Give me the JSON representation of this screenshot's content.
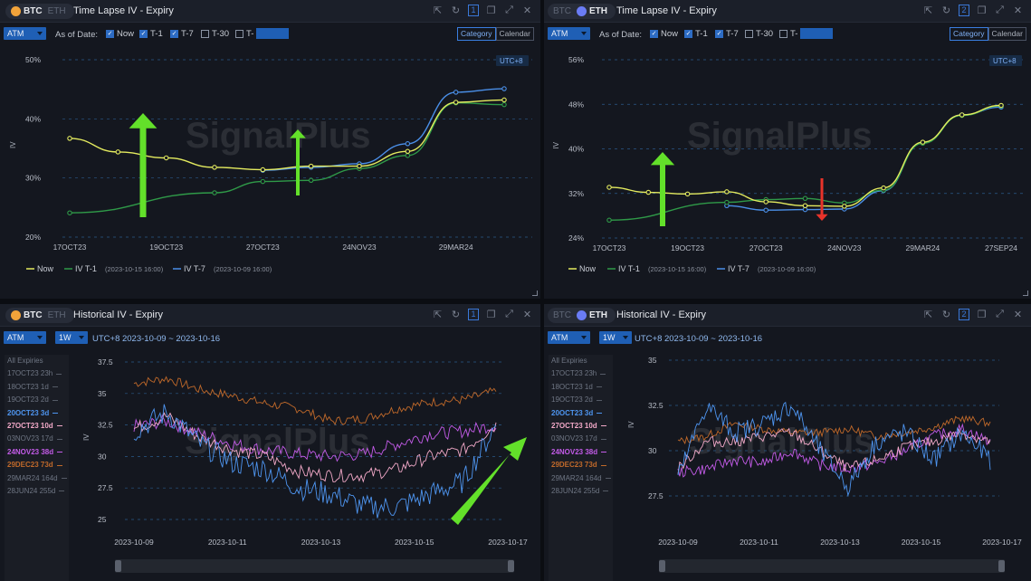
{
  "panels": {
    "tl": {
      "coin_active": "BTC",
      "coin_inactive": "ETH",
      "title": "Time Lapse IV - Expiry",
      "page_num": "1",
      "atm": "ATM",
      "as_of_label": "As of Date:",
      "checks": [
        {
          "label": "Now",
          "on": true
        },
        {
          "label": "T-1",
          "on": true
        },
        {
          "label": "T-7",
          "on": true
        },
        {
          "label": "T-30",
          "on": false
        },
        {
          "label": "T-",
          "on": false
        }
      ],
      "tenor_input": "",
      "view_toggle": [
        "Category",
        "Calendar"
      ],
      "tz_badge": "UTC+8",
      "watermark": "SignalPlus",
      "legend": [
        {
          "name": "Now",
          "date": ""
        },
        {
          "name": "IV T-1",
          "date": "(2023-10-15 16:00)"
        },
        {
          "name": "IV T-7",
          "date": "(2023-10-09 16:00)"
        }
      ]
    },
    "tr": {
      "coin_inactive": "BTC",
      "coin_active": "ETH",
      "title": "Time Lapse IV - Expiry",
      "page_num": "2",
      "atm": "ATM",
      "as_of_label": "As of Date:",
      "checks": [
        {
          "label": "Now",
          "on": true
        },
        {
          "label": "T-1",
          "on": true
        },
        {
          "label": "T-7",
          "on": true
        },
        {
          "label": "T-30",
          "on": false
        },
        {
          "label": "T-",
          "on": false
        }
      ],
      "tenor_input": "",
      "view_toggle": [
        "Category",
        "Calendar"
      ],
      "tz_badge": "UTC+8",
      "watermark": "SignalPlus",
      "legend": [
        {
          "name": "Now",
          "date": ""
        },
        {
          "name": "IV T-1",
          "date": "(2023-10-15 16:00)"
        },
        {
          "name": "IV T-7",
          "date": "(2023-10-09 16:00)"
        }
      ]
    },
    "bl": {
      "coin_active": "BTC",
      "coin_inactive": "ETH",
      "title": "Historical IV - Expiry",
      "page_num": "1",
      "atm": "ATM",
      "period": "1W",
      "range_label": "UTC+8 2023-10-09 ~ 2023-10-16",
      "watermark": "SignalPlus"
    },
    "br": {
      "coin_inactive": "BTC",
      "coin_active": "ETH",
      "title": "Historical IV - Expiry",
      "page_num": "2",
      "atm": "ATM",
      "period": "1W",
      "range_label": "UTC+8 2023-10-09 ~ 2023-10-16",
      "watermark": "SignalPlus"
    }
  },
  "expiry_list": [
    {
      "label": "All Expiries",
      "color": "#6f7684",
      "active": false
    },
    {
      "label": "17OCT23 23h",
      "color": "#6f7684",
      "active": false
    },
    {
      "label": "18OCT23 1d",
      "color": "#6f7684",
      "active": false
    },
    {
      "label": "19OCT23 2d",
      "color": "#6f7684",
      "active": false
    },
    {
      "label": "20OCT23 3d",
      "color": "#4e95f0",
      "active": true
    },
    {
      "label": "27OCT23 10d",
      "color": "#f2a9c8",
      "active": true
    },
    {
      "label": "03NOV23 17d",
      "color": "#6f7684",
      "active": false
    },
    {
      "label": "24NOV23 38d",
      "color": "#c35be8",
      "active": true
    },
    {
      "label": "29DEC23 73d",
      "color": "#c0692a",
      "active": true
    },
    {
      "label": "29MAR24 164d",
      "color": "#6f7684",
      "active": false
    },
    {
      "label": "28JUN24 255d",
      "color": "#6f7684",
      "active": false
    }
  ],
  "colors": {
    "now": "#e4eb5f",
    "t1": "#2f9a48",
    "t7": "#4a8fe8",
    "grid": "#2a5a8a",
    "arrow_up": "#63e02a",
    "arrow_down": "#e8332a"
  },
  "chart_data": [
    {
      "type": "line",
      "chart": "BTC Time Lapse IV - Expiry",
      "ylabel": "IV",
      "y_ticks": [
        "50%",
        "40%",
        "30%",
        "20%"
      ],
      "ylim": [
        20,
        50
      ],
      "categories": [
        "17OCT23",
        "18OCT23",
        "19OCT23",
        "20OCT23",
        "27OCT23",
        "03NOV23",
        "24NOV23",
        "29DEC23",
        "29MAR24",
        "28JUN24"
      ],
      "x_tick_labels": [
        "17OCT23",
        "19OCT23",
        "27OCT23",
        "24NOV23",
        "29MAR24"
      ],
      "series": [
        {
          "name": "Now",
          "values": [
            36.7,
            34.4,
            33.4,
            31.8,
            31.4,
            32.0,
            32.0,
            34.5,
            42.8,
            43.2
          ]
        },
        {
          "name": "IV T-1",
          "values": [
            24.1,
            null,
            null,
            27.5,
            29.4,
            29.6,
            31.6,
            33.8,
            42.7,
            42.4
          ]
        },
        {
          "name": "IV T-7",
          "values": [
            null,
            null,
            null,
            null,
            31.3,
            31.8,
            32.4,
            35.8,
            44.5,
            45.1
          ]
        }
      ]
    },
    {
      "type": "line",
      "chart": "ETH Time Lapse IV - Expiry",
      "ylabel": "IV",
      "y_ticks": [
        "56%",
        "48%",
        "40%",
        "32%",
        "24%"
      ],
      "ylim": [
        24,
        56
      ],
      "categories": [
        "17OCT23",
        "18OCT23",
        "19OCT23",
        "20OCT23",
        "27OCT23",
        "03NOV23",
        "24NOV23",
        "29DEC23",
        "29MAR24",
        "28JUN24",
        "27SEP24"
      ],
      "x_tick_labels": [
        "17OCT23",
        "19OCT23",
        "27OCT23",
        "24NOV23",
        "29MAR24",
        "27SEP24"
      ],
      "series": [
        {
          "name": "Now",
          "values": [
            33.1,
            32.2,
            31.9,
            32.3,
            30.5,
            29.8,
            29.7,
            33.0,
            41.2,
            46.1,
            47.8
          ]
        },
        {
          "name": "IV T-1",
          "values": [
            27.2,
            null,
            null,
            30.4,
            30.9,
            31.1,
            30.3,
            32.6,
            41.0,
            46.0,
            47.7
          ]
        },
        {
          "name": "IV T-7",
          "values": [
            null,
            null,
            null,
            29.8,
            29.0,
            29.1,
            29.2,
            32.5,
            41.1,
            46.1,
            47.5
          ]
        }
      ]
    },
    {
      "type": "line",
      "chart": "BTC Historical IV - Expiry",
      "ylabel": "IV",
      "y_ticks": [
        "37.5",
        "35",
        "32.5",
        "30",
        "27.5",
        "25"
      ],
      "ylim": [
        25,
        37.5
      ],
      "x_tick_labels": [
        "2023-10-09",
        "2023-10-11",
        "2023-10-13",
        "2023-10-15",
        "2023-10-17"
      ],
      "series": [
        {
          "name": "20OCT23 3d",
          "color": "#4e95f0",
          "values": [
            32.0,
            33.5,
            31.0,
            29.5,
            29.0,
            27.5,
            27.0,
            26.0,
            26.0,
            27.0,
            28.0,
            32.5
          ]
        },
        {
          "name": "27OCT23 10d",
          "color": "#f2a9c8",
          "values": [
            32.2,
            33.2,
            31.5,
            30.5,
            30.0,
            28.8,
            28.5,
            28.5,
            29.0,
            30.0,
            30.5,
            32.5
          ]
        },
        {
          "name": "24NOV23 38d",
          "color": "#c35be8",
          "values": [
            32.4,
            32.8,
            31.8,
            31.0,
            30.5,
            30.2,
            30.0,
            30.2,
            31.0,
            31.8,
            32.0,
            32.5
          ]
        },
        {
          "name": "29DEC23 73d",
          "color": "#c0692a",
          "values": [
            35.8,
            36.2,
            35.3,
            34.8,
            34.2,
            33.8,
            32.8,
            33.0,
            33.8,
            34.3,
            34.5,
            35.2
          ]
        }
      ]
    },
    {
      "type": "line",
      "chart": "ETH Historical IV - Expiry",
      "ylabel": "IV",
      "y_ticks": [
        "35",
        "32.5",
        "30",
        "27.5"
      ],
      "ylim": [
        27.5,
        35
      ],
      "x_tick_labels": [
        "2023-10-09",
        "2023-10-11",
        "2023-10-13",
        "2023-10-15",
        "2023-10-17"
      ],
      "series": [
        {
          "name": "20OCT23 3d",
          "color": "#4e95f0",
          "values": [
            28.5,
            32.5,
            31.0,
            31.5,
            32.5,
            30.0,
            28.0,
            30.5,
            31.0,
            29.5,
            31.0,
            29.5
          ]
        },
        {
          "name": "27OCT23 10d",
          "color": "#f2a9c8",
          "values": [
            29.0,
            30.5,
            30.5,
            30.8,
            31.0,
            30.0,
            29.0,
            29.5,
            30.2,
            30.5,
            31.0,
            30.5
          ]
        },
        {
          "name": "24NOV23 38d",
          "color": "#c35be8",
          "values": [
            28.8,
            29.0,
            29.5,
            29.3,
            30.0,
            29.2,
            29.0,
            29.3,
            30.0,
            30.8,
            31.2,
            30.5
          ]
        },
        {
          "name": "29DEC23 73d",
          "color": "#c0692a",
          "values": [
            30.5,
            30.8,
            31.5,
            31.2,
            31.0,
            31.0,
            31.2,
            30.8,
            31.0,
            31.3,
            31.8,
            31.5
          ]
        }
      ]
    }
  ]
}
